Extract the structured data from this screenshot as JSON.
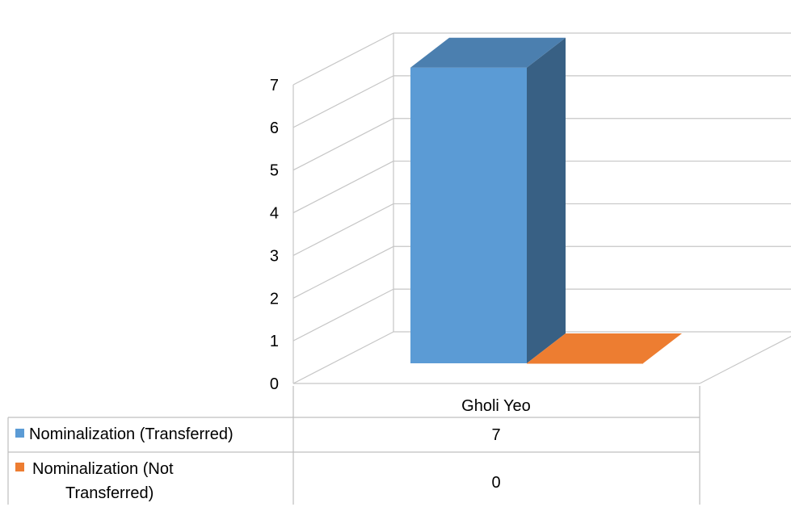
{
  "chart_data": {
    "type": "bar",
    "style": "3d-column-with-data-table",
    "categories": [
      "Gholi Yeo"
    ],
    "series": [
      {
        "name": "Nominalization (Transferred)",
        "values": [
          7
        ],
        "color": "#5B9BD5"
      },
      {
        "name": "Nominalization (Not Transferred)",
        "values": [
          0
        ],
        "color": "#ED7D31"
      }
    ],
    "ylim": [
      0,
      7
    ],
    "yticks": [
      "0",
      "1",
      "2",
      "3",
      "4",
      "5",
      "6",
      "7"
    ],
    "grid": true,
    "legend": "data-table",
    "table": {
      "rows": [
        {
          "label": "Nominalization (Transferred)",
          "value": "7"
        },
        {
          "label_lines": [
            "Nominalization (Not",
            "Transferred)"
          ],
          "value": "0"
        }
      ]
    }
  }
}
